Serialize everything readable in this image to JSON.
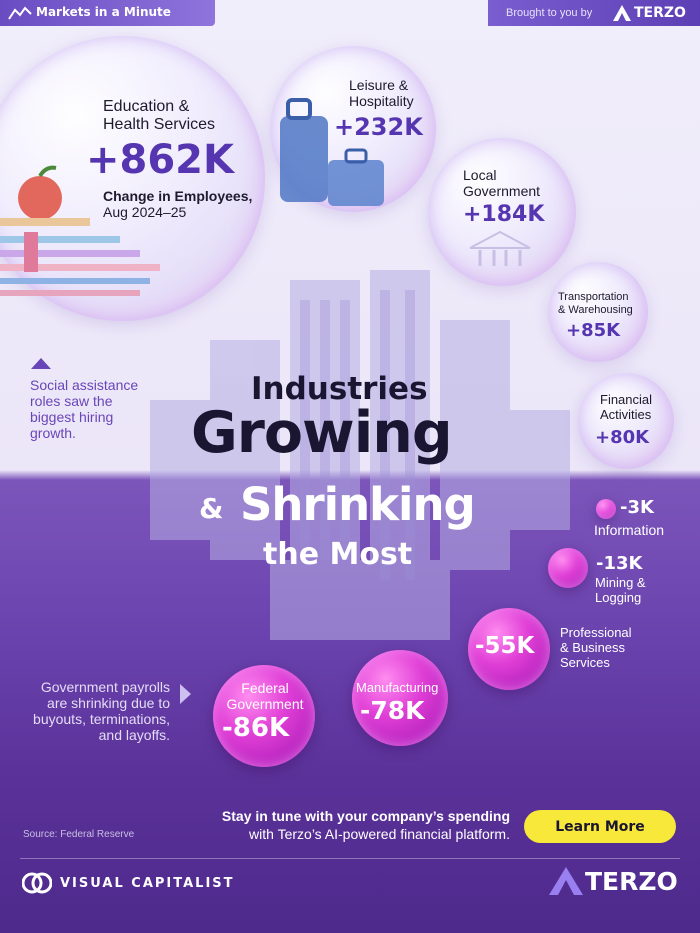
{
  "header": {
    "series_name": "Markets in a Minute",
    "brought_by": "Brought to you by",
    "sponsor": "TERZO"
  },
  "title": {
    "line1": "Industries",
    "line2": "Growing",
    "amp": "&",
    "line3": "Shrinking",
    "line4": "the Most"
  },
  "chart_data": {
    "type": "bubble",
    "measure_label": "Change in Employees,",
    "period_label": "Aug 2024–25",
    "unit": "thousands of employees",
    "industries": [
      {
        "name": "Education & Health Services",
        "value": 862,
        "display": "+862K"
      },
      {
        "name": "Leisure & Hospitality",
        "value": 232,
        "display": "+232K"
      },
      {
        "name": "Local Government",
        "value": 184,
        "display": "+184K"
      },
      {
        "name": "Transportation & Warehousing",
        "value": 85,
        "display": "+85K"
      },
      {
        "name": "Financial Activities",
        "value": 80,
        "display": "+80K"
      },
      {
        "name": "Information",
        "value": -3,
        "display": "-3K"
      },
      {
        "name": "Mining & Logging",
        "value": -13,
        "display": "-13K"
      },
      {
        "name": "Professional & Business Services",
        "value": -55,
        "display": "-55K"
      },
      {
        "name": "Manufacturing",
        "value": -78,
        "display": "-78K"
      },
      {
        "name": "Federal Government",
        "value": -86,
        "display": "-86K"
      }
    ]
  },
  "labels": {
    "edu_1": "Education &",
    "edu_2": "Health Services",
    "leisure_1": "Leisure &",
    "leisure_2": "Hospitality",
    "local_1": "Local",
    "local_2": "Government",
    "transport_1": "Transportation",
    "transport_2": "& Warehousing",
    "fin_1": "Financial",
    "fin_2": "Activities",
    "info_1": "Information",
    "mining_1": "Mining &",
    "mining_2": "Logging",
    "prof_1": "Professional",
    "prof_2": "& Business",
    "prof_3": "Services",
    "mfg_1": "Manufacturing",
    "fed_1": "Federal",
    "fed_2": "Government"
  },
  "notes": {
    "social_1": "Social assistance",
    "social_2": "roles saw the",
    "social_3": "biggest hiring",
    "social_4": "growth.",
    "gov_1": "Government payrolls",
    "gov_2": "are shrinking due to",
    "gov_3": "buyouts, terminations,",
    "gov_4": "and layoffs."
  },
  "footer": {
    "source": "Source: Federal Reserve",
    "promo_1": "Stay in tune with your company’s spending",
    "promo_2": "with Terzo’s AI-powered financial platform.",
    "cta": "Learn More",
    "publisher": "VISUAL CAPITALIST",
    "sponsor": "TERZO"
  },
  "colors": {
    "positive": "#5536b0",
    "negative_bubble": "#d63bd0",
    "cta": "#f7e83a"
  }
}
